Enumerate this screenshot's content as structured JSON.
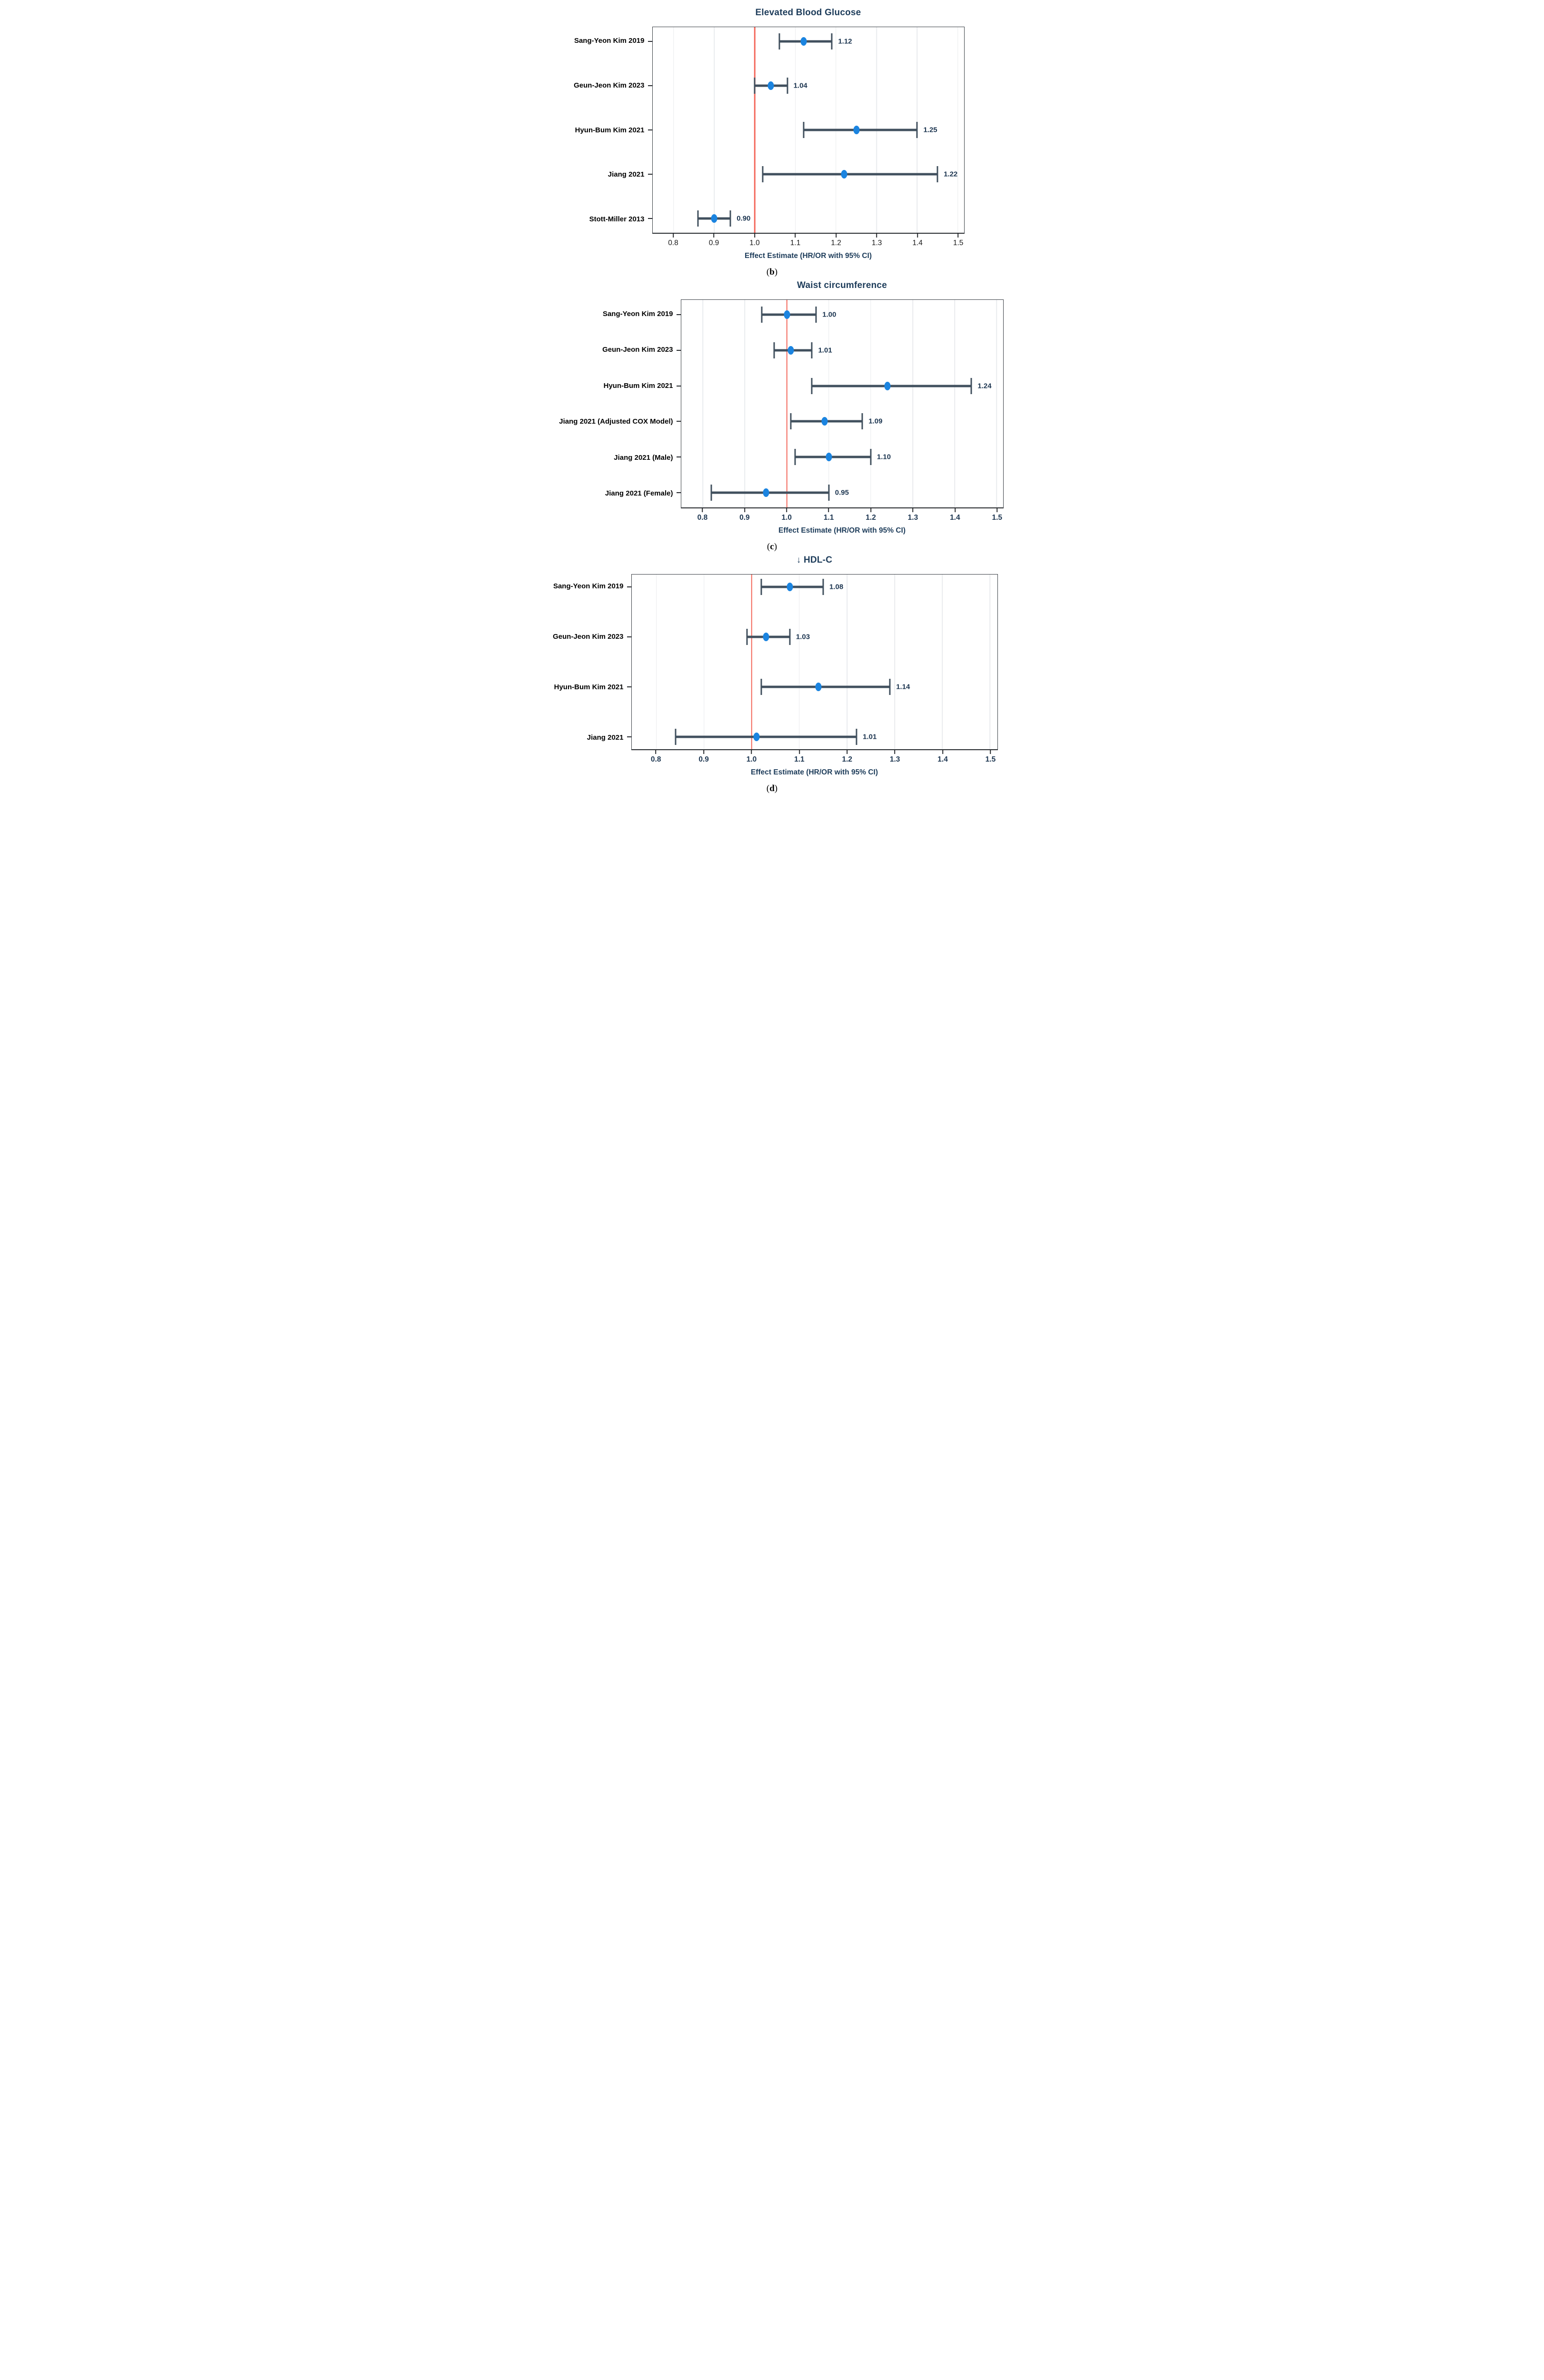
{
  "colors": {
    "marker": "#1b84e0",
    "error_bar": "#41505e",
    "ref_line": "#f4685c",
    "title": "#1d3c5a",
    "axis_label": "#1d3c5a",
    "value_label": "#1c3550",
    "tick_label_bold": "#1c3550",
    "tick_label_plain": "#1a1a1a",
    "study_label": "#000000",
    "gridline": "#e9ebee",
    "spine": "#3a3f45"
  },
  "chart_data": [
    {
      "type": "scatter",
      "subtype": "forest-plot",
      "title": "Elevated Blood Glucose",
      "caption": "(b)",
      "xlabel": "Effect Estimate (HR/OR with 95% CI)",
      "xlim": [
        0.748,
        1.515
      ],
      "xticks": [
        0.8,
        0.9,
        1.0,
        1.1,
        1.2,
        1.3,
        1.4,
        1.5
      ],
      "xtick_labels": [
        "0.8",
        "0.9",
        "1.0",
        "1.1",
        "1.2",
        "1.3",
        "1.4",
        "1.5"
      ],
      "ref_line": 1.0,
      "grid": true,
      "legend": "none",
      "studies": [
        {
          "label": "Sang-Yeon Kim 2019",
          "estimate": 1.12,
          "ci_low": 1.06,
          "ci_high": 1.19,
          "value_label": "1.12"
        },
        {
          "label": "Geun-Jeon Kim 2023",
          "estimate": 1.04,
          "ci_low": 1.0,
          "ci_high": 1.08,
          "value_label": "1.04"
        },
        {
          "label": "Hyun-Bum Kim 2021",
          "estimate": 1.25,
          "ci_low": 1.12,
          "ci_high": 1.4,
          "value_label": "1.25"
        },
        {
          "label": "Jiang 2021",
          "estimate": 1.22,
          "ci_low": 1.02,
          "ci_high": 1.45,
          "value_label": "1.22"
        },
        {
          "label": "Stott-Miller 2013",
          "estimate": 0.9,
          "ci_low": 0.86,
          "ci_high": 0.94,
          "value_label": "0.90"
        }
      ]
    },
    {
      "type": "scatter",
      "subtype": "forest-plot",
      "title": "Waist circumference",
      "caption": "(c)",
      "xlabel": "Effect Estimate (HR/OR with 95% CI)",
      "xlim": [
        0.748,
        1.515
      ],
      "xticks": [
        0.8,
        0.9,
        1.0,
        1.1,
        1.2,
        1.3,
        1.4,
        1.5
      ],
      "xtick_labels": [
        "0.8",
        "0.9",
        "1.0",
        "1.1",
        "1.2",
        "1.3",
        "1.4",
        "1.5"
      ],
      "ref_line": 1.0,
      "grid": true,
      "legend": "none",
      "studies": [
        {
          "label": "Sang-Yeon Kim 2019",
          "estimate": 1.0,
          "ci_low": 0.94,
          "ci_high": 1.07,
          "value_label": "1.00"
        },
        {
          "label": "Geun-Jeon Kim 2023",
          "estimate": 1.01,
          "ci_low": 0.97,
          "ci_high": 1.06,
          "value_label": "1.01"
        },
        {
          "label": "Hyun-Bum Kim 2021",
          "estimate": 1.24,
          "ci_low": 1.06,
          "ci_high": 1.44,
          "value_label": "1.24"
        },
        {
          "label": "Jiang 2021 (Adjusted COX Model)",
          "estimate": 1.09,
          "ci_low": 1.01,
          "ci_high": 1.18,
          "value_label": "1.09"
        },
        {
          "label": "Jiang 2021 (Male)",
          "estimate": 1.1,
          "ci_low": 1.02,
          "ci_high": 1.2,
          "value_label": "1.10"
        },
        {
          "label": "Jiang 2021 (Female)",
          "estimate": 0.95,
          "ci_low": 0.82,
          "ci_high": 1.1,
          "value_label": "0.95"
        }
      ]
    },
    {
      "type": "scatter",
      "subtype": "forest-plot",
      "title": "↓ HDL-C",
      "caption": "(d)",
      "xlabel": "Effect Estimate (HR/OR with 95% CI)",
      "xlim": [
        0.748,
        1.515
      ],
      "xticks": [
        0.8,
        0.9,
        1.0,
        1.1,
        1.2,
        1.3,
        1.4,
        1.5
      ],
      "xtick_labels": [
        "0.8",
        "0.9",
        "1.0",
        "1.1",
        "1.2",
        "1.3",
        "1.4",
        "1.5"
      ],
      "ref_line": 1.0,
      "grid": true,
      "legend": "none",
      "studies": [
        {
          "label": "Sang-Yeon Kim 2019",
          "estimate": 1.08,
          "ci_low": 1.02,
          "ci_high": 1.15,
          "value_label": "1.08"
        },
        {
          "label": "Geun-Jeon Kim 2023",
          "estimate": 1.03,
          "ci_low": 0.99,
          "ci_high": 1.08,
          "value_label": "1.03"
        },
        {
          "label": "Hyun-Bum Kim 2021",
          "estimate": 1.14,
          "ci_low": 1.02,
          "ci_high": 1.29,
          "value_label": "1.14"
        },
        {
          "label": "Jiang 2021",
          "estimate": 1.01,
          "ci_low": 0.84,
          "ci_high": 1.22,
          "value_label": "1.01"
        }
      ]
    }
  ]
}
